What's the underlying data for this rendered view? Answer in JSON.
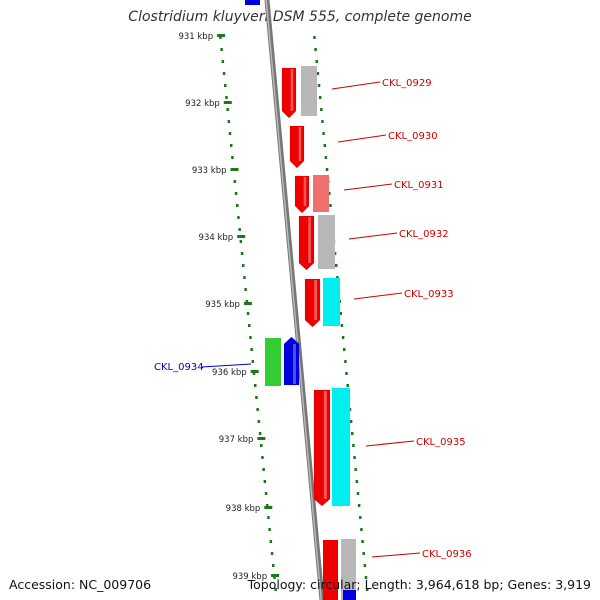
{
  "title": "Clostridium kluyveri DSM 555, complete genome",
  "accession": "Accession: NC_009706",
  "summary": "Topology: circular; Length: 3,964,618 bp; Genes: 3,919",
  "colors": {
    "backbone": "#888888",
    "tick": "#1a7a1a",
    "label_red": "#cc0000",
    "label_blue": "#0000cc",
    "red": "#ee0000",
    "gray": "#b8b8b8",
    "pink": "#f07070",
    "cyan": "#00eeee",
    "green": "#33cc33",
    "blue": "#0000dd"
  },
  "ticks": [
    "931 kbp",
    "932 kbp",
    "933 kbp",
    "934 kbp",
    "935 kbp",
    "936 kbp",
    "937 kbp",
    "938 kbp",
    "939 kbp"
  ],
  "gene_labels": [
    "CKL_0929",
    "CKL_0930",
    "CKL_0931",
    "CKL_0932",
    "CKL_0933",
    "CKL_0934",
    "CKL_0935",
    "CKL_0936"
  ]
}
